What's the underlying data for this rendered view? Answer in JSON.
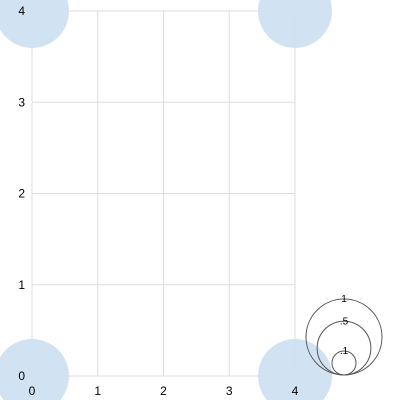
{
  "chart_data": {
    "type": "scatter",
    "title": "",
    "xlabel": "",
    "ylabel": "",
    "xlim": [
      0,
      4
    ],
    "ylim": [
      0,
      4
    ],
    "x_ticks": [
      0,
      1,
      2,
      3,
      4
    ],
    "y_ticks": [
      0,
      1,
      2,
      3,
      4
    ],
    "grid": true,
    "series": [
      {
        "color": "#cfe0f2",
        "points": [
          {
            "x": 0,
            "y": 4,
            "size": 1
          },
          {
            "x": 4,
            "y": 4,
            "size": 1
          },
          {
            "x": 0,
            "y": 0,
            "size": 1
          },
          {
            "x": 4,
            "y": 0,
            "size": 1
          }
        ]
      }
    ],
    "size_legend": {
      "placement": "bottom-right",
      "entries": [
        {
          "value": 1,
          "label": "1"
        },
        {
          "value": 0.5,
          "label": ".5"
        },
        {
          "value": 0.1,
          "label": ".1"
        }
      ]
    }
  }
}
